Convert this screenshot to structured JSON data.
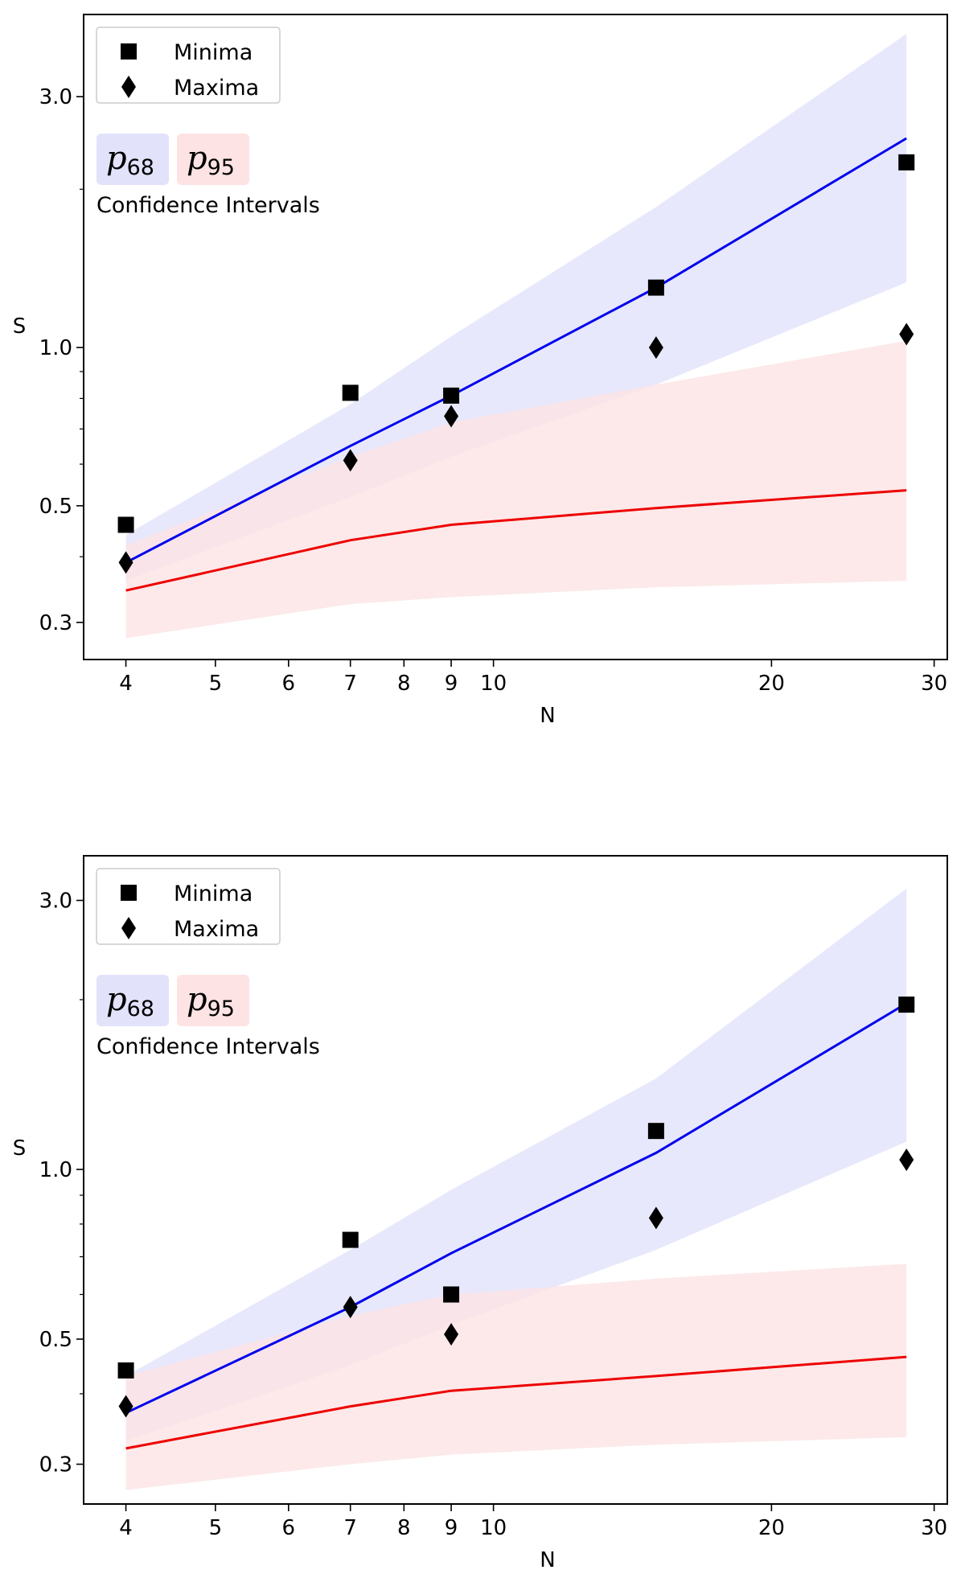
{
  "chart_data": [
    {
      "type": "line",
      "x_scale": "log",
      "y_scale": "log",
      "xlabel": "N",
      "ylabel": "S",
      "xlim": [
        3.6,
        31
      ],
      "ylim": [
        0.255,
        4.3
      ],
      "x_ticks": [
        4,
        5,
        6,
        7,
        8,
        9,
        10,
        20,
        30
      ],
      "y_ticks": [
        0.3,
        0.5,
        1.0,
        3.0
      ],
      "x_tick_labels": [
        "4",
        "5",
        "6",
        "7",
        "8",
        "9",
        "10",
        "20",
        "30"
      ],
      "y_tick_labels": [
        "0.3",
        "0.5",
        "1.0",
        "3.0"
      ],
      "legend": {
        "placement": "top-left",
        "entries": [
          {
            "label": "Minima",
            "marker": "square"
          },
          {
            "label": "Maxima",
            "marker": "diamond"
          }
        ]
      },
      "ci_legend": {
        "p68_base": "p",
        "p68_sub": "68",
        "p95_base": "p",
        "p95_sub": "95",
        "caption": "Confidence Intervals"
      },
      "x": [
        4,
        7,
        9,
        15,
        28
      ],
      "series": [
        {
          "name": "Minima",
          "kind": "scatter",
          "marker": "square",
          "values": [
            0.46,
            0.82,
            0.81,
            1.3,
            2.25
          ]
        },
        {
          "name": "Maxima",
          "kind": "scatter",
          "marker": "diamond",
          "values": [
            0.39,
            0.61,
            0.74,
            1.0,
            1.06
          ]
        },
        {
          "kind": "line",
          "color": "#0000ee",
          "band_color": "#e2e2fb",
          "values": [
            0.39,
            0.65,
            0.81,
            1.3,
            2.5
          ],
          "band_upper": [
            0.44,
            0.78,
            1.05,
            1.85,
            3.95
          ],
          "band_lower": [
            0.36,
            0.52,
            0.62,
            0.85,
            1.33
          ]
        },
        {
          "kind": "line",
          "color": "#ee0000",
          "band_color": "#fde3e3",
          "values": [
            0.345,
            0.43,
            0.46,
            0.495,
            0.535
          ],
          "band_upper": [
            0.42,
            0.62,
            0.72,
            0.85,
            1.03
          ],
          "band_lower": [
            0.28,
            0.325,
            0.335,
            0.35,
            0.36
          ]
        }
      ]
    },
    {
      "type": "line",
      "x_scale": "log",
      "y_scale": "log",
      "xlabel": "N",
      "ylabel": "S",
      "xlim": [
        3.6,
        31
      ],
      "ylim": [
        0.255,
        3.6
      ],
      "x_ticks": [
        4,
        5,
        6,
        7,
        8,
        9,
        10,
        20,
        30
      ],
      "y_ticks": [
        0.3,
        0.5,
        1.0,
        3.0
      ],
      "x_tick_labels": [
        "4",
        "5",
        "6",
        "7",
        "8",
        "9",
        "10",
        "20",
        "30"
      ],
      "y_tick_labels": [
        "0.3",
        "0.5",
        "1.0",
        "3.0"
      ],
      "legend": {
        "placement": "top-left",
        "entries": [
          {
            "label": "Minima",
            "marker": "square"
          },
          {
            "label": "Maxima",
            "marker": "diamond"
          }
        ]
      },
      "ci_legend": {
        "p68_base": "p",
        "p68_sub": "68",
        "p95_base": "p",
        "p95_sub": "95",
        "caption": "Confidence Intervals"
      },
      "x": [
        4,
        7,
        9,
        15,
        28
      ],
      "series": [
        {
          "name": "Minima",
          "kind": "scatter",
          "marker": "square",
          "values": [
            0.44,
            0.75,
            0.6,
            1.17,
            1.96
          ]
        },
        {
          "name": "Maxima",
          "kind": "scatter",
          "marker": "diamond",
          "values": [
            0.38,
            0.57,
            0.51,
            0.82,
            1.04
          ]
        },
        {
          "kind": "line",
          "color": "#0000ee",
          "band_color": "#e2e2fb",
          "values": [
            0.37,
            0.57,
            0.71,
            1.07,
            1.97
          ],
          "band_upper": [
            0.43,
            0.72,
            0.92,
            1.45,
            3.15
          ],
          "band_lower": [
            0.33,
            0.45,
            0.53,
            0.72,
            1.12
          ]
        },
        {
          "kind": "line",
          "color": "#ee0000",
          "band_color": "#fde3e3",
          "values": [
            0.32,
            0.38,
            0.405,
            0.43,
            0.465
          ],
          "band_upper": [
            0.43,
            0.55,
            0.6,
            0.64,
            0.68
          ],
          "band_lower": [
            0.27,
            0.3,
            0.312,
            0.325,
            0.335
          ]
        }
      ]
    }
  ]
}
